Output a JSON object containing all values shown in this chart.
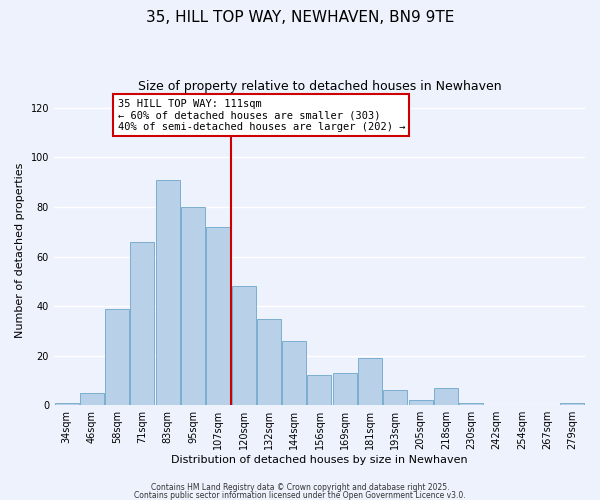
{
  "title": "35, HILL TOP WAY, NEWHAVEN, BN9 9TE",
  "subtitle": "Size of property relative to detached houses in Newhaven",
  "xlabel": "Distribution of detached houses by size in Newhaven",
  "ylabel": "Number of detached properties",
  "bar_labels": [
    "34sqm",
    "46sqm",
    "58sqm",
    "71sqm",
    "83sqm",
    "95sqm",
    "107sqm",
    "120sqm",
    "132sqm",
    "144sqm",
    "156sqm",
    "169sqm",
    "181sqm",
    "193sqm",
    "205sqm",
    "218sqm",
    "230sqm",
    "242sqm",
    "254sqm",
    "267sqm",
    "279sqm"
  ],
  "bar_values": [
    1,
    5,
    39,
    66,
    91,
    80,
    72,
    48,
    35,
    26,
    12,
    13,
    19,
    6,
    2,
    7,
    1,
    0,
    0,
    0,
    1
  ],
  "bar_color": "#b8d0e8",
  "bar_edge_color": "#7aaecf",
  "vline_x": 7.0,
  "vline_color": "#cc0000",
  "ylim": [
    0,
    125
  ],
  "yticks": [
    0,
    20,
    40,
    60,
    80,
    100,
    120
  ],
  "annotation_title": "35 HILL TOP WAY: 111sqm",
  "annotation_line1": "← 60% of detached houses are smaller (303)",
  "annotation_line2": "40% of semi-detached houses are larger (202) →",
  "footer1": "Contains HM Land Registry data © Crown copyright and database right 2025.",
  "footer2": "Contains public sector information licensed under the Open Government Licence v3.0.",
  "bg_color": "#eef2fc",
  "plot_bg_color": "#eef2fc",
  "grid_color": "#ffffff",
  "title_fontsize": 11,
  "subtitle_fontsize": 9,
  "axis_label_fontsize": 8,
  "tick_fontsize": 7,
  "annotation_fontsize": 7.5,
  "footer_fontsize": 5.5
}
